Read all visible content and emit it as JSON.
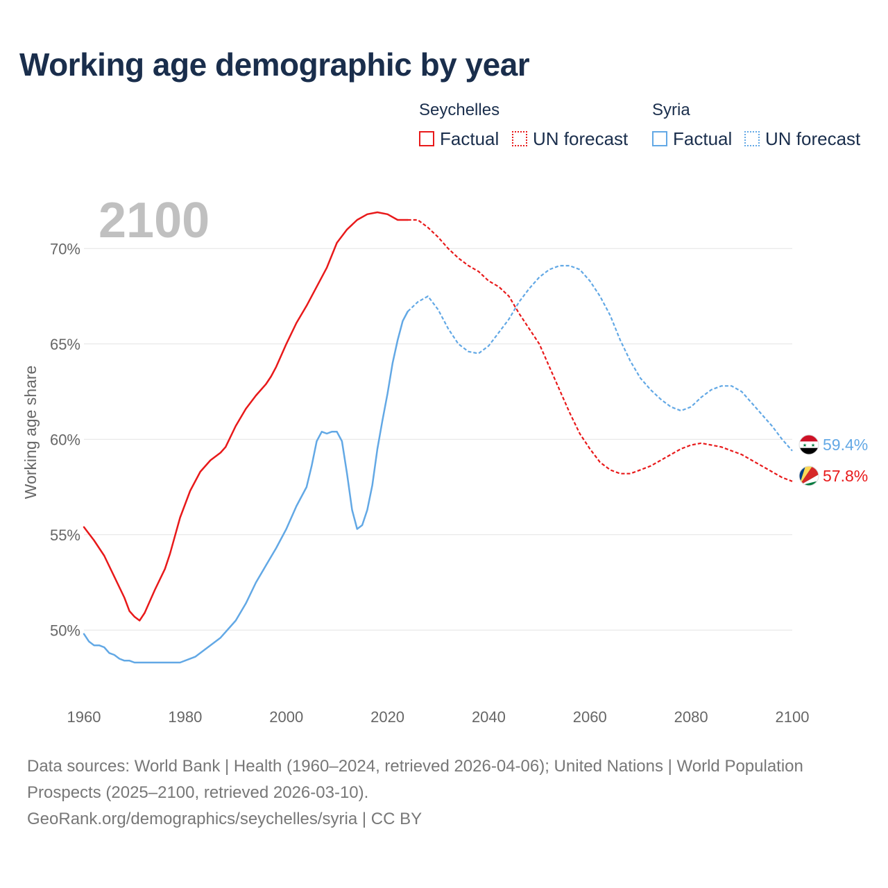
{
  "title": "Working age demographic by year",
  "year_label": "2100",
  "legend": {
    "groups": [
      {
        "name": "Seychelles",
        "factual_label": "Factual",
        "forecast_label": "UN forecast",
        "color": "#e8191a"
      },
      {
        "name": "Syria",
        "factual_label": "Factual",
        "forecast_label": "UN forecast",
        "color": "#62a8e5"
      }
    ]
  },
  "end_labels": {
    "syria": "59.4%",
    "seychelles": "57.8%"
  },
  "flags": {
    "syria": "syria-flag-icon",
    "seychelles": "seychelles-flag-icon"
  },
  "footer": {
    "sources": "Data sources: World Bank | Health (1960–2024, retrieved 2026-04-06); United Nations | World Population Prospects (2025–2100, retrieved 2026-03-10).",
    "credit": "GeoRank.org/demographics/seychelles/syria | CC BY"
  },
  "chart_data": {
    "type": "line",
    "title": "Working age demographic by year",
    "xlabel": "",
    "ylabel": "Working age share",
    "xlim": [
      1960,
      2100
    ],
    "ylim": [
      46.3,
      73.5
    ],
    "x_ticks": [
      1960,
      1980,
      2000,
      2020,
      2040,
      2060,
      2080,
      2100
    ],
    "x_tick_labels": [
      "1960",
      "1980",
      "2000",
      "2020",
      "2040",
      "2060",
      "2080",
      "2100"
    ],
    "y_ticks": [
      50,
      55,
      60,
      65,
      70
    ],
    "y_tick_labels": [
      "50%",
      "55%",
      "60%",
      "65%",
      "70%"
    ],
    "grid": true,
    "legend_position": "top-right",
    "factual_range": [
      1960,
      2024
    ],
    "forecast_range": [
      2024,
      2100
    ],
    "series": [
      {
        "name": "Seychelles",
        "color": "#e8191a",
        "points": [
          [
            1960,
            55.4
          ],
          [
            1962,
            54.7
          ],
          [
            1964,
            53.9
          ],
          [
            1966,
            52.8
          ],
          [
            1968,
            51.7
          ],
          [
            1969,
            51.0
          ],
          [
            1970,
            50.7
          ],
          [
            1971,
            50.5
          ],
          [
            1972,
            50.9
          ],
          [
            1974,
            52.1
          ],
          [
            1976,
            53.2
          ],
          [
            1977,
            54.0
          ],
          [
            1979,
            55.9
          ],
          [
            1981,
            57.3
          ],
          [
            1983,
            58.3
          ],
          [
            1985,
            58.9
          ],
          [
            1987,
            59.3
          ],
          [
            1988,
            59.6
          ],
          [
            1990,
            60.7
          ],
          [
            1992,
            61.6
          ],
          [
            1994,
            62.3
          ],
          [
            1996,
            62.9
          ],
          [
            1997,
            63.3
          ],
          [
            1998,
            63.8
          ],
          [
            2000,
            65.0
          ],
          [
            2002,
            66.1
          ],
          [
            2004,
            67.0
          ],
          [
            2006,
            68.0
          ],
          [
            2008,
            69.0
          ],
          [
            2010,
            70.3
          ],
          [
            2012,
            71.0
          ],
          [
            2014,
            71.5
          ],
          [
            2016,
            71.8
          ],
          [
            2018,
            71.9
          ],
          [
            2020,
            71.8
          ],
          [
            2022,
            71.5
          ],
          [
            2024,
            71.5
          ],
          [
            2026,
            71.5
          ],
          [
            2028,
            71.1
          ],
          [
            2030,
            70.6
          ],
          [
            2032,
            70.0
          ],
          [
            2034,
            69.5
          ],
          [
            2036,
            69.1
          ],
          [
            2038,
            68.8
          ],
          [
            2040,
            68.3
          ],
          [
            2042,
            68.0
          ],
          [
            2044,
            67.5
          ],
          [
            2046,
            66.6
          ],
          [
            2048,
            65.8
          ],
          [
            2050,
            65.0
          ],
          [
            2052,
            63.8
          ],
          [
            2054,
            62.6
          ],
          [
            2056,
            61.4
          ],
          [
            2058,
            60.3
          ],
          [
            2060,
            59.5
          ],
          [
            2062,
            58.8
          ],
          [
            2064,
            58.4
          ],
          [
            2066,
            58.2
          ],
          [
            2068,
            58.2
          ],
          [
            2070,
            58.4
          ],
          [
            2072,
            58.6
          ],
          [
            2074,
            58.9
          ],
          [
            2076,
            59.2
          ],
          [
            2078,
            59.5
          ],
          [
            2080,
            59.7
          ],
          [
            2082,
            59.8
          ],
          [
            2084,
            59.7
          ],
          [
            2086,
            59.6
          ],
          [
            2088,
            59.4
          ],
          [
            2090,
            59.2
          ],
          [
            2092,
            58.9
          ],
          [
            2094,
            58.6
          ],
          [
            2096,
            58.3
          ],
          [
            2098,
            58.0
          ],
          [
            2100,
            57.8
          ]
        ]
      },
      {
        "name": "Syria",
        "color": "#62a8e5",
        "points": [
          [
            1960,
            49.8
          ],
          [
            1961,
            49.4
          ],
          [
            1962,
            49.2
          ],
          [
            1963,
            49.2
          ],
          [
            1964,
            49.1
          ],
          [
            1965,
            48.8
          ],
          [
            1966,
            48.7
          ],
          [
            1967,
            48.5
          ],
          [
            1968,
            48.4
          ],
          [
            1969,
            48.4
          ],
          [
            1970,
            48.3
          ],
          [
            1975,
            48.3
          ],
          [
            1979,
            48.3
          ],
          [
            1982,
            48.6
          ],
          [
            1985,
            49.2
          ],
          [
            1987,
            49.6
          ],
          [
            1990,
            50.5
          ],
          [
            1992,
            51.4
          ],
          [
            1994,
            52.5
          ],
          [
            1996,
            53.4
          ],
          [
            1998,
            54.3
          ],
          [
            2000,
            55.3
          ],
          [
            2002,
            56.5
          ],
          [
            2004,
            57.5
          ],
          [
            2005,
            58.6
          ],
          [
            2006,
            59.9
          ],
          [
            2007,
            60.4
          ],
          [
            2008,
            60.3
          ],
          [
            2009,
            60.4
          ],
          [
            2010,
            60.4
          ],
          [
            2011,
            59.9
          ],
          [
            2012,
            58.2
          ],
          [
            2013,
            56.3
          ],
          [
            2014,
            55.3
          ],
          [
            2015,
            55.5
          ],
          [
            2016,
            56.3
          ],
          [
            2017,
            57.6
          ],
          [
            2018,
            59.5
          ],
          [
            2019,
            61.0
          ],
          [
            2020,
            62.4
          ],
          [
            2021,
            64.0
          ],
          [
            2022,
            65.2
          ],
          [
            2023,
            66.2
          ],
          [
            2024,
            66.7
          ],
          [
            2026,
            67.2
          ],
          [
            2028,
            67.5
          ],
          [
            2030,
            66.8
          ],
          [
            2032,
            65.8
          ],
          [
            2034,
            65.0
          ],
          [
            2036,
            64.6
          ],
          [
            2038,
            64.5
          ],
          [
            2040,
            64.9
          ],
          [
            2042,
            65.6
          ],
          [
            2044,
            66.3
          ],
          [
            2046,
            67.2
          ],
          [
            2048,
            67.9
          ],
          [
            2050,
            68.5
          ],
          [
            2052,
            68.9
          ],
          [
            2054,
            69.1
          ],
          [
            2056,
            69.1
          ],
          [
            2058,
            68.9
          ],
          [
            2060,
            68.3
          ],
          [
            2062,
            67.5
          ],
          [
            2064,
            66.5
          ],
          [
            2066,
            65.2
          ],
          [
            2068,
            64.1
          ],
          [
            2070,
            63.2
          ],
          [
            2072,
            62.6
          ],
          [
            2074,
            62.1
          ],
          [
            2076,
            61.7
          ],
          [
            2078,
            61.5
          ],
          [
            2080,
            61.7
          ],
          [
            2082,
            62.2
          ],
          [
            2084,
            62.6
          ],
          [
            2086,
            62.8
          ],
          [
            2088,
            62.8
          ],
          [
            2090,
            62.5
          ],
          [
            2092,
            61.9
          ],
          [
            2094,
            61.3
          ],
          [
            2096,
            60.7
          ],
          [
            2098,
            60.0
          ],
          [
            2100,
            59.4
          ]
        ]
      }
    ]
  }
}
